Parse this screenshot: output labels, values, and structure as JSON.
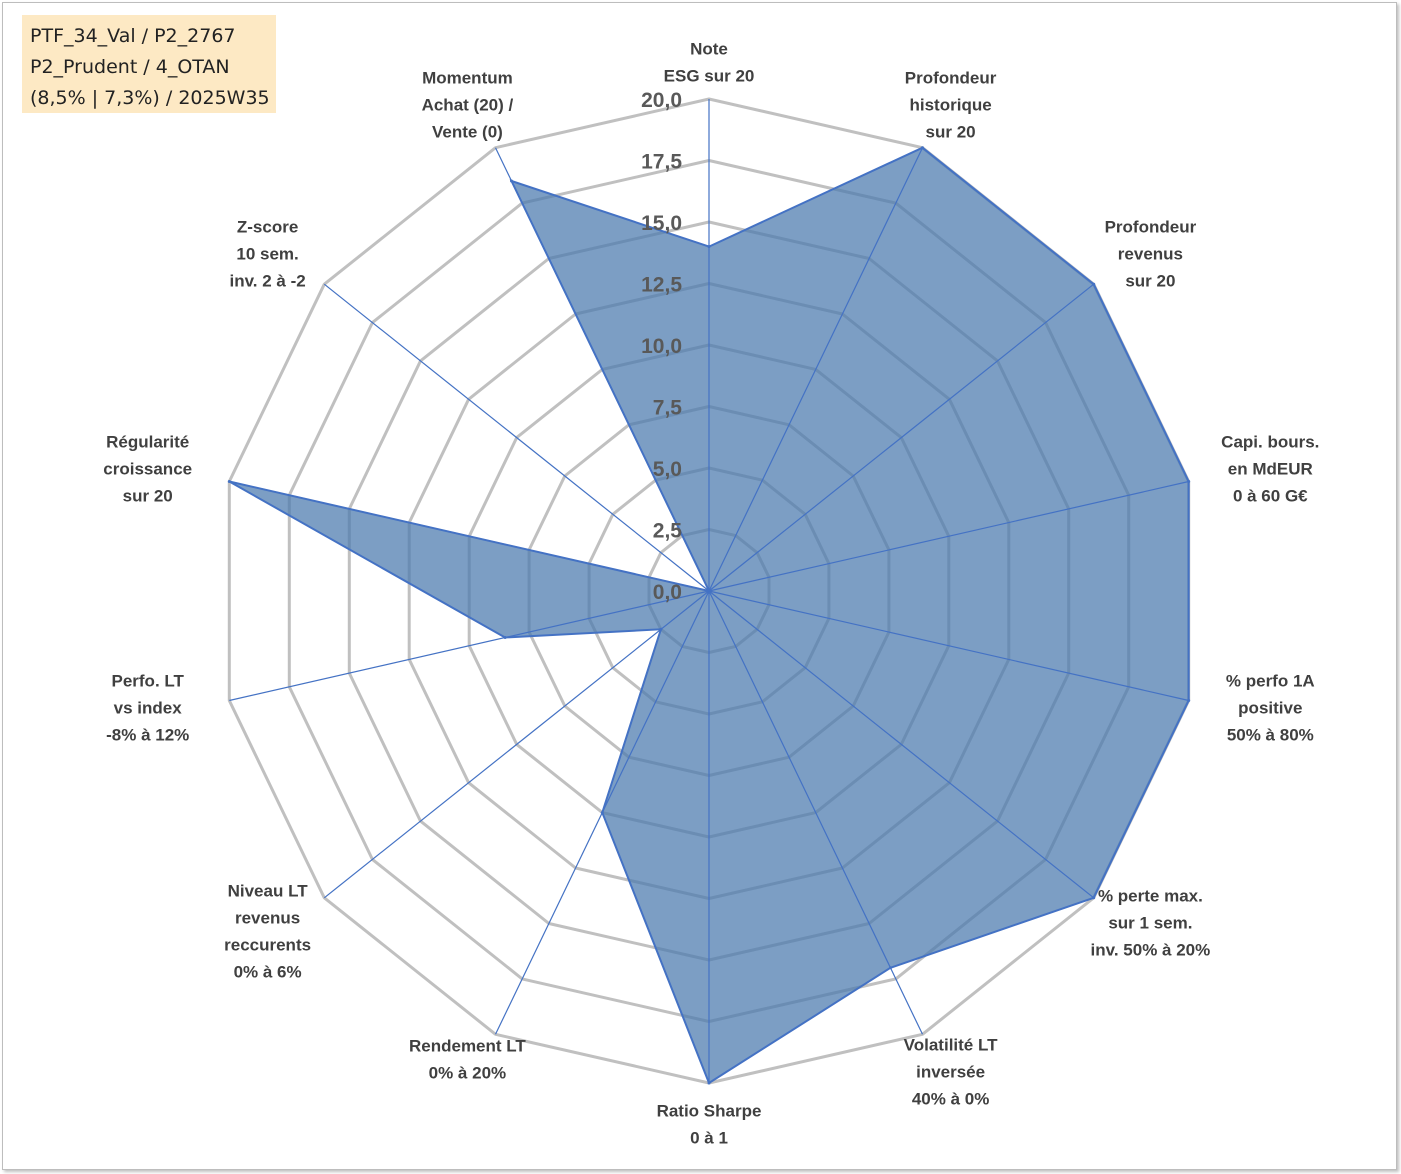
{
  "info": {
    "line1": "PTF_34_Val / P2_2767",
    "line2": "P2_Prudent / 4_OTAN",
    "line3": "(8,5% | 7,3%) / 2025W35"
  },
  "chart_data": {
    "type": "radar",
    "rmin": 0,
    "rmax": 20,
    "ticks": [
      "0,0",
      "2,5",
      "5,0",
      "7,5",
      "10,0",
      "12,5",
      "15,0",
      "17,5",
      "20,0"
    ],
    "axes": [
      [
        "Note",
        "ESG sur 20"
      ],
      [
        "Profondeur",
        "historique",
        "sur 20"
      ],
      [
        "Profondeur",
        "revenus",
        "sur 20"
      ],
      [
        "Capi. bours.",
        "en MdEUR",
        "0 à 60 G€"
      ],
      [
        "% perfo 1A",
        "positive",
        "50% à 80%"
      ],
      [
        "% perte max.",
        "sur 1 sem.",
        "inv. 50% à 20%"
      ],
      [
        "Volatilité LT",
        "inversée",
        "40% à 0%"
      ],
      [
        "Ratio Sharpe",
        "0 à 1"
      ],
      [
        "Rendement LT",
        "0% à 20%"
      ],
      [
        "Niveau LT",
        "revenus",
        "reccurents",
        "0% à 6%"
      ],
      [
        "Perfo. LT",
        "vs index",
        "-8% à 12%"
      ],
      [
        "Régularité",
        "croissance",
        "sur 20"
      ],
      [
        "Z-score",
        "10 sem.",
        "inv. 2 à -2"
      ],
      [
        "Momentum",
        "Achat (20) /",
        "Vente (0)"
      ]
    ],
    "values": [
      14,
      20,
      20,
      20,
      20,
      20,
      17,
      20,
      10,
      2.5,
      8.5,
      20,
      0,
      18.5
    ],
    "grid": true,
    "legend": "none",
    "colors": {
      "fill": "#4a78ad",
      "fill_opacity": 0.72,
      "stroke": "#4472c4",
      "grid": "#c0c0c0",
      "spoke": "#4472c4"
    }
  }
}
